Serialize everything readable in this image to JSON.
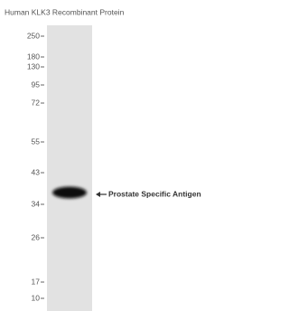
{
  "header": {
    "title": "Human KLK3 Recombinant Protein"
  },
  "markers": [
    "250",
    "180",
    "130",
    "95",
    "72",
    "55",
    "43",
    "34",
    "26",
    "17",
    "10"
  ],
  "band": {
    "label": "Prostate Specific Antigen"
  }
}
